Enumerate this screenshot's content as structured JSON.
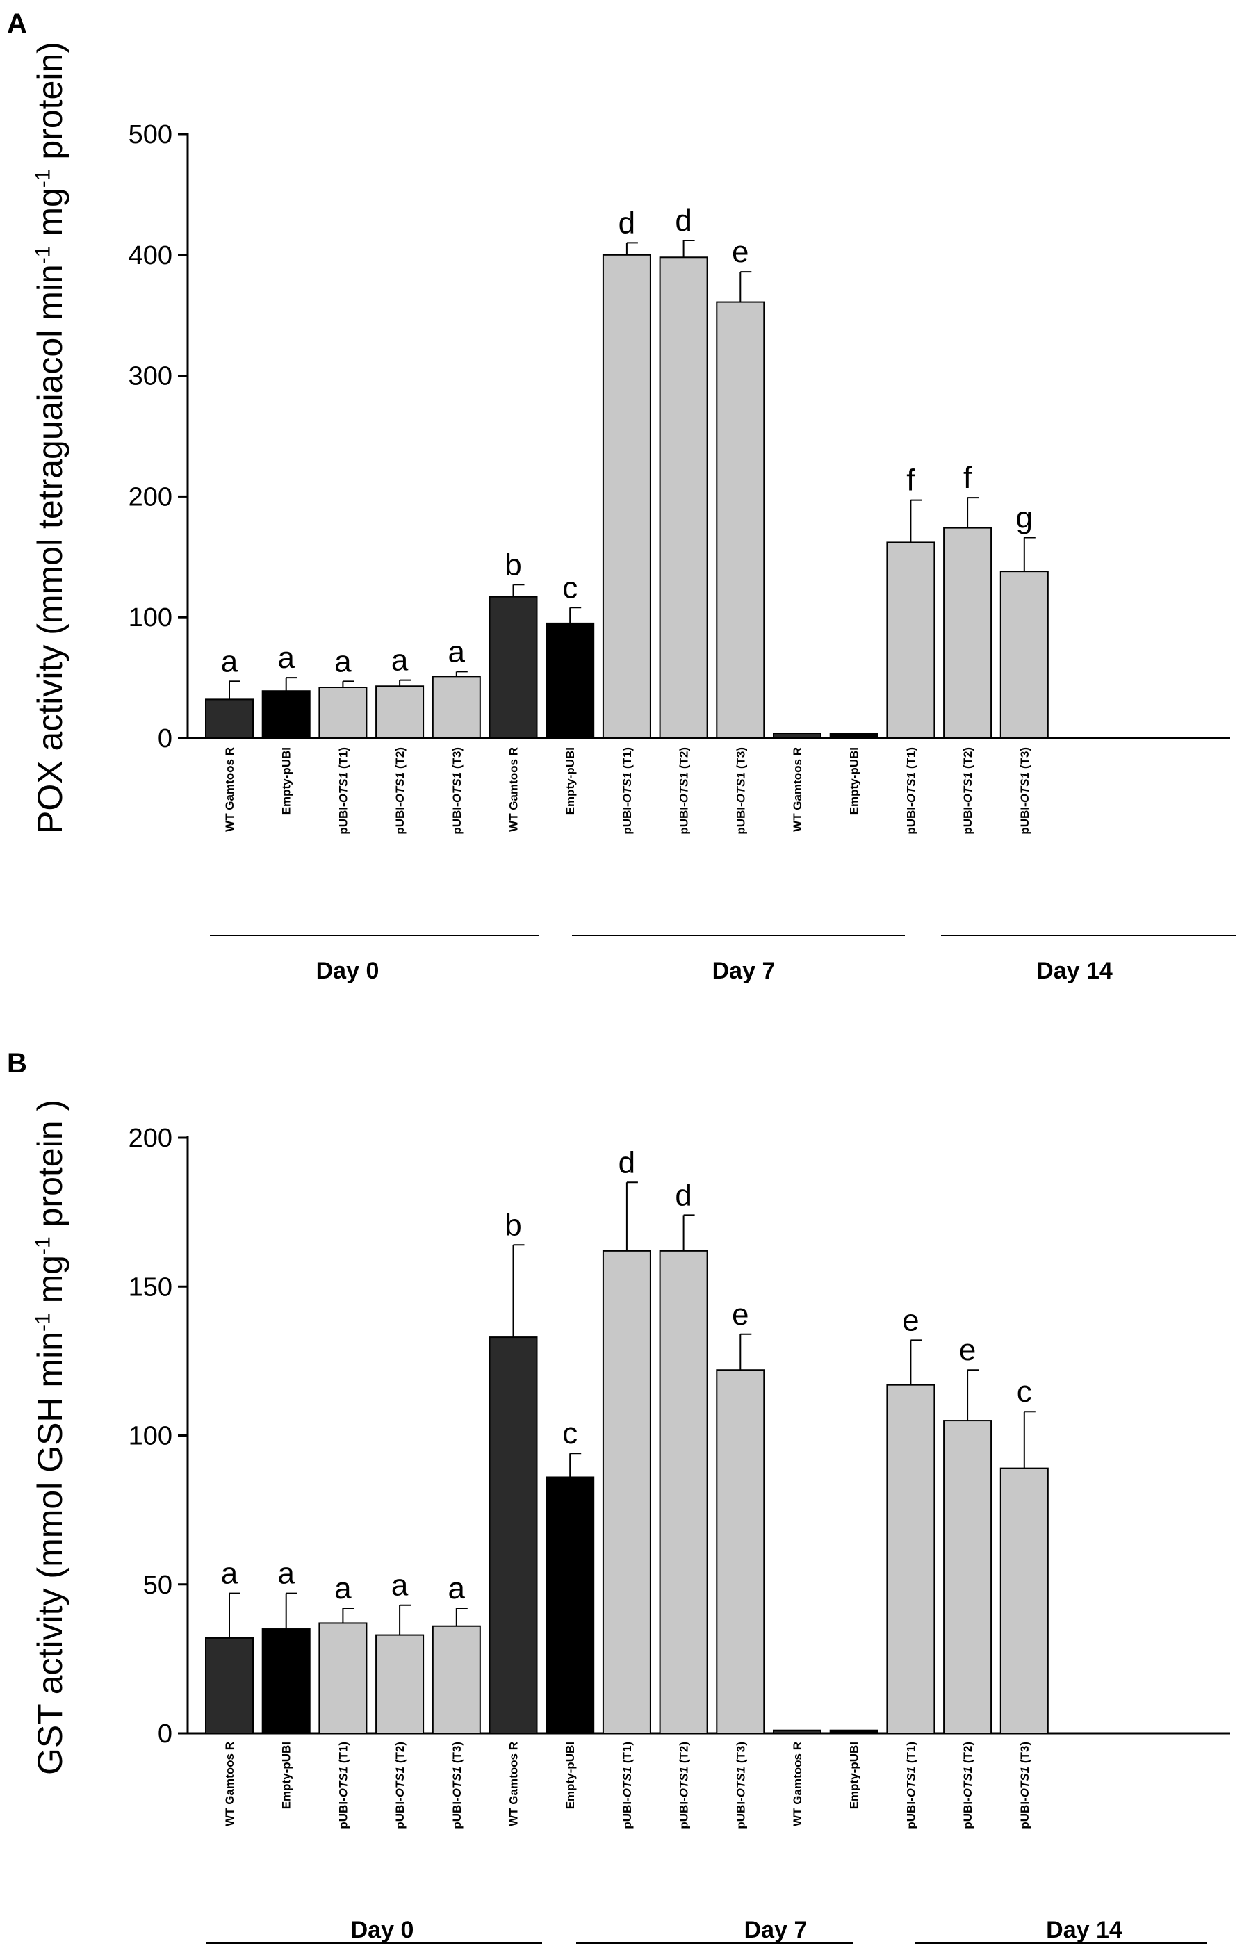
{
  "chart_data": [
    {
      "panel": "A",
      "type": "bar",
      "ylabel_parts": [
        "POX activity (mmol tetraguaiacol min",
        "-1",
        " mg",
        "-1",
        " protein)"
      ],
      "ylim": [
        0,
        500
      ],
      "yticks": [
        0,
        100,
        200,
        300,
        400,
        500
      ],
      "categories": [
        {
          "pre": "WT Gamtoos R",
          "ital": "",
          "post": ""
        },
        {
          "pre": "Empty-pUBI",
          "ital": "",
          "post": ""
        },
        {
          "pre": "pUBI-",
          "ital": "OTS1",
          "post": " (T1)"
        },
        {
          "pre": "pUBI-",
          "ital": "OTS1",
          "post": " (T2)"
        },
        {
          "pre": "pUBI-",
          "ital": "OTS1",
          "post": " (T3)"
        },
        {
          "pre": "WT Gamtoos R",
          "ital": "",
          "post": ""
        },
        {
          "pre": "Empty-pUBI",
          "ital": "",
          "post": ""
        },
        {
          "pre": "pUBI-",
          "ital": "OTS1",
          "post": " (T1)"
        },
        {
          "pre": "pUBI-",
          "ital": "OTS1",
          "post": " (T2)"
        },
        {
          "pre": "pUBI-",
          "ital": "OTS1",
          "post": " (T3)"
        },
        {
          "pre": "WT Gamtoos R",
          "ital": "",
          "post": ""
        },
        {
          "pre": "Empty-pUBI",
          "ital": "",
          "post": ""
        },
        {
          "pre": "pUBI-",
          "ital": "OTS1",
          "post": " (T1)"
        },
        {
          "pre": "pUBI-",
          "ital": "OTS1",
          "post": " (T2)"
        },
        {
          "pre": "pUBI-",
          "ital": "OTS1",
          "post": " (T3)"
        }
      ],
      "values": [
        32,
        39,
        42,
        43,
        51,
        117,
        95,
        400,
        398,
        361,
        4,
        4,
        162,
        174,
        138
      ],
      "errors": [
        15,
        11,
        5,
        5,
        4,
        10,
        13,
        10,
        14,
        25,
        0,
        0,
        35,
        25,
        28
      ],
      "significance": [
        "a",
        "a",
        "a",
        "a",
        "a",
        "b",
        "c",
        "d",
        "d",
        "e",
        "",
        "",
        "f",
        "f",
        "g"
      ],
      "bar_colors": [
        "#2b2b2b",
        "#000000",
        "#c8c8c8",
        "#c8c8c8",
        "#c8c8c8",
        "#2b2b2b",
        "#000000",
        "#c8c8c8",
        "#c8c8c8",
        "#c8c8c8",
        "#2b2b2b",
        "#000000",
        "#c8c8c8",
        "#c8c8c8",
        "#c8c8c8"
      ],
      "groups": [
        "Day 0",
        "Day 7",
        "Day 14"
      ]
    },
    {
      "panel": "B",
      "type": "bar",
      "ylabel_parts": [
        "GST activity (mmol GSH min",
        "-1",
        " mg",
        "-1",
        " protein )"
      ],
      "ylim": [
        0,
        200
      ],
      "yticks": [
        0,
        50,
        100,
        150,
        200
      ],
      "categories": [
        {
          "pre": "WT Gamtoos R",
          "ital": "",
          "post": ""
        },
        {
          "pre": "Empty-pUBI",
          "ital": "",
          "post": ""
        },
        {
          "pre": "pUBI-",
          "ital": "OTS1",
          "post": " (T1)"
        },
        {
          "pre": "pUBI-",
          "ital": "OTS1",
          "post": " (T2)"
        },
        {
          "pre": "pUBI-",
          "ital": "OTS1",
          "post": " (T3)"
        },
        {
          "pre": "WT Gamtoos R",
          "ital": "",
          "post": ""
        },
        {
          "pre": "Empty-pUBI",
          "ital": "",
          "post": ""
        },
        {
          "pre": "pUBI-",
          "ital": "OTS1",
          "post": " (T1)"
        },
        {
          "pre": "pUBI-",
          "ital": "OTS1",
          "post": " (T2)"
        },
        {
          "pre": "pUBI-",
          "ital": "OTS1",
          "post": " (T3)"
        },
        {
          "pre": "WT Gamtoos R",
          "ital": "",
          "post": ""
        },
        {
          "pre": "Empty-pUBI",
          "ital": "",
          "post": ""
        },
        {
          "pre": "pUBI-",
          "ital": "OTS1",
          "post": " (T1)"
        },
        {
          "pre": "pUBI-",
          "ital": "OTS1",
          "post": " (T2)"
        },
        {
          "pre": "pUBI-",
          "ital": "OTS1",
          "post": " (T3)"
        }
      ],
      "values": [
        32,
        35,
        37,
        33,
        36,
        133,
        86,
        162,
        162,
        122,
        1,
        1,
        117,
        105,
        89
      ],
      "errors": [
        15,
        12,
        5,
        10,
        6,
        31,
        8,
        23,
        12,
        12,
        0,
        0,
        15,
        17,
        19
      ],
      "significance": [
        "a",
        "a",
        "a",
        "a",
        "a",
        "b",
        "c",
        "d",
        "d",
        "e",
        "",
        "",
        "e",
        "e",
        "c"
      ],
      "bar_colors": [
        "#2b2b2b",
        "#000000",
        "#c8c8c8",
        "#c8c8c8",
        "#c8c8c8",
        "#2b2b2b",
        "#000000",
        "#c8c8c8",
        "#c8c8c8",
        "#c8c8c8",
        "#2b2b2b",
        "#000000",
        "#c8c8c8",
        "#c8c8c8",
        "#c8c8c8"
      ],
      "groups": [
        "Day 0",
        "Day 7",
        "Day 14"
      ]
    }
  ],
  "panels": {
    "a_label": "A",
    "b_label": "B"
  }
}
